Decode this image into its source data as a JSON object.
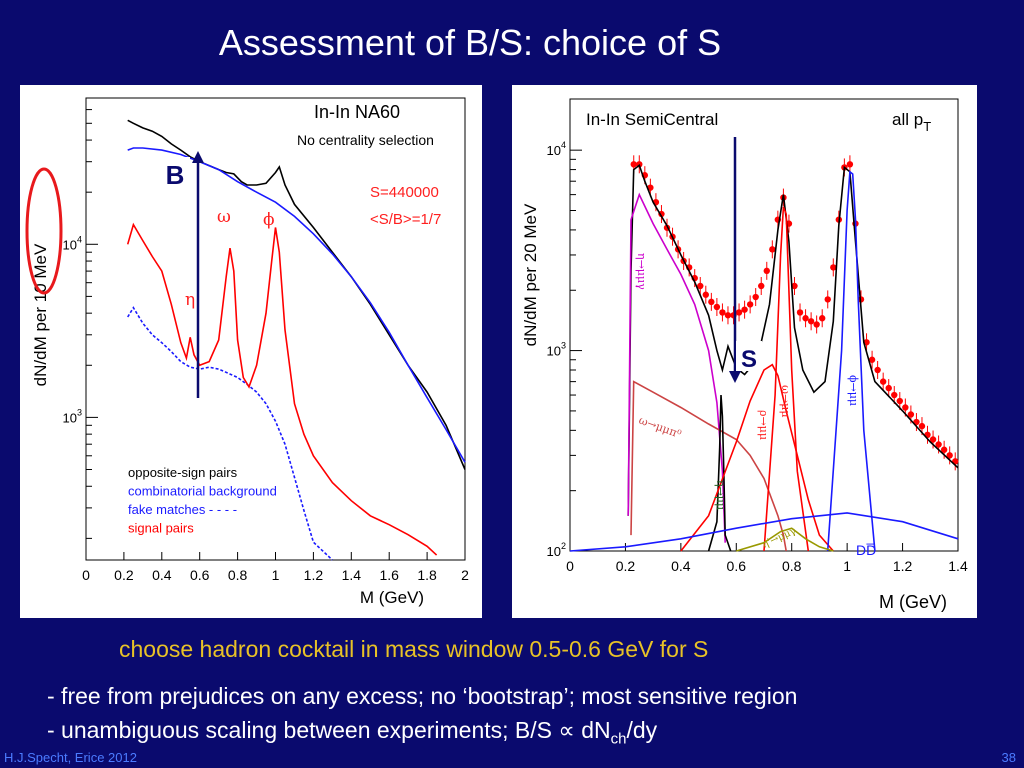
{
  "slide": {
    "title": "Assessment of B/S: choice of S",
    "subtitle": "choose hadron cocktail in mass window 0.5-0.6 GeV for S",
    "bullet1": "- free from prejudices on any excess; no ‘bootstrap’; most sensitive region",
    "bullet2_prefix": "- unambiguous scaling between experiments; B/S ",
    "bullet2_symbol": "∝",
    "bullet2_dn": " dN",
    "bullet2_sub": "ch",
    "bullet2_suffix": "/dy",
    "footer_left": "H.J.Specht, Erice 2012",
    "footer_right": "38"
  },
  "chart_data": [
    {
      "type": "line",
      "panel": "left",
      "ylabel": "dN/dM per 10 MeV",
      "xlabel": "M (GeV)",
      "xlim": [
        0,
        2
      ],
      "ylim": [
        150,
        70000
      ],
      "yscale": "log",
      "xticks": [
        "0",
        "0.2",
        "0.4",
        "0.6",
        "0.8",
        "1",
        "1.2",
        "1.4",
        "1.6",
        "1.8",
        "2"
      ],
      "yticks": [
        "10^3",
        "10^4"
      ],
      "texts": {
        "system": "In-In  NA60",
        "centrality": "No centrality selection",
        "s_value": "S=440000",
        "sb_value": "<S/B>=1/7",
        "b_marker": "B",
        "omega": "ω",
        "phi": "ϕ",
        "eta": "η"
      },
      "legend": [
        {
          "label": "opposite-sign pairs",
          "color": "#000000"
        },
        {
          "label": "combinatorial background",
          "color": "#1a1aff"
        },
        {
          "label": "fake matches - - - -",
          "color": "#1a1aff"
        },
        {
          "label": "signal pairs",
          "color": "#ff0000"
        }
      ],
      "series": [
        {
          "name": "opposite-sign pairs",
          "color": "#000000",
          "x": [
            0.22,
            0.25,
            0.3,
            0.35,
            0.4,
            0.45,
            0.5,
            0.55,
            0.6,
            0.65,
            0.7,
            0.74,
            0.78,
            0.82,
            0.85,
            0.9,
            0.95,
            1.0,
            1.02,
            1.05,
            1.1,
            1.2,
            1.3,
            1.4,
            1.5,
            1.6,
            1.7,
            1.8,
            1.9,
            2.0
          ],
          "y": [
            52000,
            50000,
            47000,
            45000,
            42000,
            38000,
            35000,
            32000,
            30000,
            28500,
            27000,
            26000,
            25500,
            23000,
            22000,
            22000,
            22500,
            26000,
            28000,
            22000,
            17000,
            12500,
            9000,
            6500,
            4500,
            3000,
            2000,
            1400,
            900,
            500
          ]
        },
        {
          "name": "combinatorial background",
          "color": "#1a1aff",
          "x": [
            0.22,
            0.25,
            0.3,
            0.4,
            0.5,
            0.6,
            0.7,
            0.8,
            0.9,
            1.0,
            1.1,
            1.2,
            1.3,
            1.4,
            1.5,
            1.6,
            1.7,
            1.8,
            1.9,
            2.0
          ],
          "y": [
            35000,
            36000,
            36000,
            35000,
            33000,
            30000,
            27000,
            23000,
            20000,
            17500,
            14500,
            11500,
            8800,
            6500,
            4600,
            3100,
            2000,
            1300,
            850,
            550
          ]
        },
        {
          "name": "fake matches",
          "color": "#1a1aff",
          "dashed": true,
          "x": [
            0.22,
            0.25,
            0.3,
            0.35,
            0.4,
            0.45,
            0.5,
            0.55,
            0.6,
            0.65,
            0.7,
            0.75,
            0.8,
            0.85,
            0.9,
            0.95,
            1.0,
            1.05,
            1.1,
            1.15,
            1.2,
            1.3
          ],
          "y": [
            3800,
            4300,
            3500,
            3000,
            2700,
            2400,
            2100,
            1950,
            1900,
            1950,
            1900,
            1800,
            1700,
            1550,
            1400,
            1200,
            950,
            700,
            450,
            290,
            190,
            110
          ]
        },
        {
          "name": "signal pairs",
          "color": "#ff0000",
          "x": [
            0.22,
            0.25,
            0.3,
            0.35,
            0.4,
            0.45,
            0.5,
            0.53,
            0.55,
            0.57,
            0.6,
            0.65,
            0.7,
            0.74,
            0.76,
            0.78,
            0.8,
            0.83,
            0.86,
            0.9,
            0.95,
            0.98,
            1.0,
            1.02,
            1.05,
            1.1,
            1.15,
            1.2,
            1.3,
            1.4,
            1.5,
            1.6,
            1.7,
            1.8,
            1.85
          ],
          "y": [
            10000,
            13000,
            10500,
            8500,
            7000,
            4500,
            2700,
            2200,
            2900,
            2300,
            2000,
            2100,
            2800,
            6500,
            9500,
            7000,
            2800,
            1700,
            1500,
            2000,
            4000,
            8000,
            12500,
            9000,
            3200,
            1200,
            800,
            600,
            420,
            330,
            270,
            240,
            210,
            180,
            160
          ]
        }
      ]
    },
    {
      "type": "line",
      "panel": "right",
      "ylabel": "dN/dM per 20 MeV",
      "xlabel": "M (GeV)",
      "xlim": [
        0,
        1.4
      ],
      "ylim": [
        100,
        18000
      ],
      "yscale": "log",
      "xticks": [
        "0",
        "0.2",
        "0.4",
        "0.6",
        "0.8",
        "1",
        "1.2",
        "1.4"
      ],
      "yticks": [
        "10^2",
        "10^3",
        "10^4"
      ],
      "texts": {
        "system": "In-In SemiCentral",
        "pt_range": "all p",
        "pt_sub": "T",
        "s_marker": "S",
        "eta_dalitz": "η→μμγ",
        "omega_dalitz": "ω→μμπ⁰",
        "eta_direct": "η→μμ",
        "rho": "ρ→μμ",
        "omega": "ω→μμ",
        "phi": "ϕ→μμ",
        "etaprime": "η'→μμγ",
        "dd": "DD̅"
      },
      "series": [
        {
          "name": "data",
          "color": "#ff0000",
          "markers": true,
          "x": [
            0.23,
            0.25,
            0.27,
            0.29,
            0.31,
            0.33,
            0.35,
            0.37,
            0.39,
            0.41,
            0.43,
            0.45,
            0.47,
            0.49,
            0.51,
            0.53,
            0.55,
            0.57,
            0.59,
            0.61,
            0.63,
            0.65,
            0.67,
            0.69,
            0.71,
            0.73,
            0.75,
            0.77,
            0.79,
            0.81,
            0.83,
            0.85,
            0.87,
            0.89,
            0.91,
            0.93,
            0.95,
            0.97,
            0.99,
            1.01,
            1.03,
            1.05,
            1.07,
            1.09,
            1.11,
            1.13,
            1.15,
            1.17,
            1.19,
            1.21,
            1.23,
            1.25,
            1.27,
            1.29,
            1.31,
            1.33,
            1.35,
            1.37,
            1.39
          ],
          "y": [
            8500,
            8500,
            7500,
            6500,
            5500,
            4800,
            4100,
            3700,
            3200,
            2800,
            2600,
            2300,
            2100,
            1900,
            1750,
            1650,
            1550,
            1500,
            1500,
            1550,
            1600,
            1700,
            1850,
            2100,
            2500,
            3200,
            4500,
            5800,
            4300,
            2100,
            1550,
            1450,
            1400,
            1350,
            1450,
            1800,
            2600,
            4500,
            8200,
            8500,
            4300,
            1800,
            1100,
            900,
            800,
            700,
            650,
            600,
            560,
            520,
            480,
            440,
            420,
            380,
            360,
            340,
            320,
            300,
            280
          ]
        },
        {
          "name": "total",
          "color": "#000000",
          "x": [
            0.21,
            0.22,
            0.23,
            0.25,
            0.27,
            0.3,
            0.35,
            0.4,
            0.45,
            0.5,
            0.53,
            0.55,
            0.57,
            0.6,
            0.63,
            0.66,
            0.69,
            0.72,
            0.75,
            0.77,
            0.79,
            0.81,
            0.84,
            0.88,
            0.92,
            0.95,
            0.97,
            0.99,
            1.01,
            1.03,
            1.06,
            1.1,
            1.2,
            1.3,
            1.4
          ],
          "y": [
            150,
            2500,
            8000,
            8400,
            7000,
            5500,
            4200,
            3000,
            2200,
            1500,
            1000,
            800,
            1050,
            820,
            760,
            850,
            1100,
            1700,
            4000,
            6000,
            3500,
            1300,
            800,
            620,
            700,
            1400,
            4200,
            8200,
            7800,
            3500,
            1100,
            700,
            500,
            350,
            260
          ]
        },
        {
          "name": "eta dalitz",
          "color": "#cc00cc",
          "x": [
            0.21,
            0.22,
            0.25,
            0.3,
            0.35,
            0.4,
            0.45,
            0.5,
            0.53,
            0.55,
            0.56
          ],
          "y": [
            150,
            4500,
            6000,
            4300,
            3200,
            2400,
            1700,
            1000,
            550,
            250,
            110
          ]
        },
        {
          "name": "omega dalitz",
          "color": "#cc4444",
          "x": [
            0.22,
            0.23,
            0.3,
            0.4,
            0.5,
            0.6,
            0.65,
            0.7,
            0.75,
            0.77,
            0.78
          ],
          "y": [
            120,
            700,
            620,
            520,
            430,
            360,
            300,
            230,
            150,
            120,
            100
          ]
        },
        {
          "name": "eta direct",
          "color": "#000000",
          "x": [
            0.5,
            0.53,
            0.54,
            0.545,
            0.55,
            0.555,
            0.56,
            0.58
          ],
          "y": [
            100,
            140,
            330,
            600,
            470,
            250,
            120,
            100
          ]
        },
        {
          "name": "rho",
          "color": "#ff0000",
          "x": [
            0.4,
            0.5,
            0.6,
            0.65,
            0.7,
            0.73,
            0.75,
            0.78,
            0.82,
            0.86,
            0.9,
            0.95
          ],
          "y": [
            100,
            150,
            350,
            560,
            800,
            850,
            750,
            500,
            300,
            180,
            120,
            100
          ]
        },
        {
          "name": "omega",
          "color": "#ff0000",
          "x": [
            0.7,
            0.74,
            0.76,
            0.77,
            0.78,
            0.79,
            0.8,
            0.82,
            0.86
          ],
          "y": [
            100,
            600,
            3000,
            5200,
            4800,
            2000,
            800,
            250,
            100
          ]
        },
        {
          "name": "phi",
          "color": "#1a1aff",
          "x": [
            0.93,
            0.98,
            1.0,
            1.01,
            1.02,
            1.03,
            1.04,
            1.06,
            1.1
          ],
          "y": [
            100,
            1000,
            5000,
            7800,
            7600,
            4500,
            1800,
            400,
            100
          ]
        },
        {
          "name": "DD",
          "color": "#1a1aff",
          "x": [
            0.0,
            0.2,
            0.4,
            0.6,
            0.8,
            1.0,
            1.2,
            1.4
          ],
          "y": [
            100,
            105,
            115,
            130,
            145,
            155,
            140,
            115
          ]
        },
        {
          "name": "etaprime dalitz",
          "color": "#999900",
          "x": [
            0.6,
            0.7,
            0.76,
            0.8,
            0.85,
            0.9,
            0.95
          ],
          "y": [
            100,
            110,
            125,
            130,
            115,
            105,
            100
          ]
        }
      ]
    }
  ]
}
